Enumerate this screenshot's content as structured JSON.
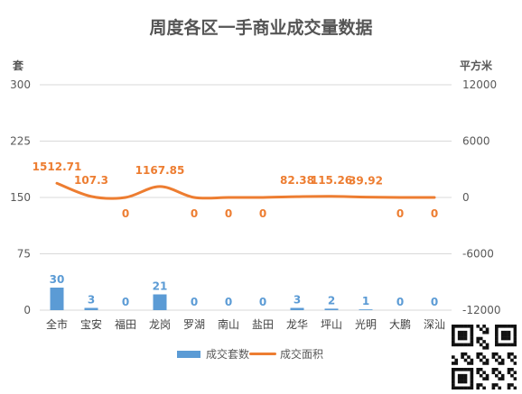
{
  "title": "周度各区一手商业成交量数据",
  "left_unit": "套",
  "right_unit": "平方米",
  "legend": {
    "bar_label": "成交套数",
    "line_label": "成交面积"
  },
  "colors": {
    "bar": "#5b9bd5",
    "line": "#ed7d31",
    "grid": "#d9d9d9",
    "axis_text": "#595959"
  },
  "chart_data": {
    "type": "bar",
    "title": "周度各区一手商业成交量数据",
    "categories": [
      "全市",
      "宝安",
      "福田",
      "龙岗",
      "罗湖",
      "南山",
      "盐田",
      "龙华",
      "坪山",
      "光明",
      "大鹏",
      "深汕"
    ],
    "series": [
      {
        "name": "成交套数",
        "type": "bar",
        "axis": "left",
        "values": [
          30,
          3,
          0,
          21,
          0,
          0,
          0,
          3,
          2,
          1,
          0,
          0
        ]
      },
      {
        "name": "成交面积",
        "type": "line",
        "axis": "right",
        "values": [
          1512.71,
          107.3,
          0,
          1167.85,
          0,
          0,
          0,
          82.38,
          115.26,
          39.92,
          0,
          0
        ]
      }
    ],
    "left_axis": {
      "label": "套",
      "ticks": [
        0,
        75,
        150,
        225,
        300
      ],
      "ylim": [
        0,
        300
      ]
    },
    "right_axis": {
      "label": "平方米",
      "ticks": [
        -12000,
        -6000,
        0,
        6000,
        12000
      ],
      "ylim": [
        -12000,
        12000
      ]
    },
    "grid": true,
    "legend_position": "bottom"
  }
}
